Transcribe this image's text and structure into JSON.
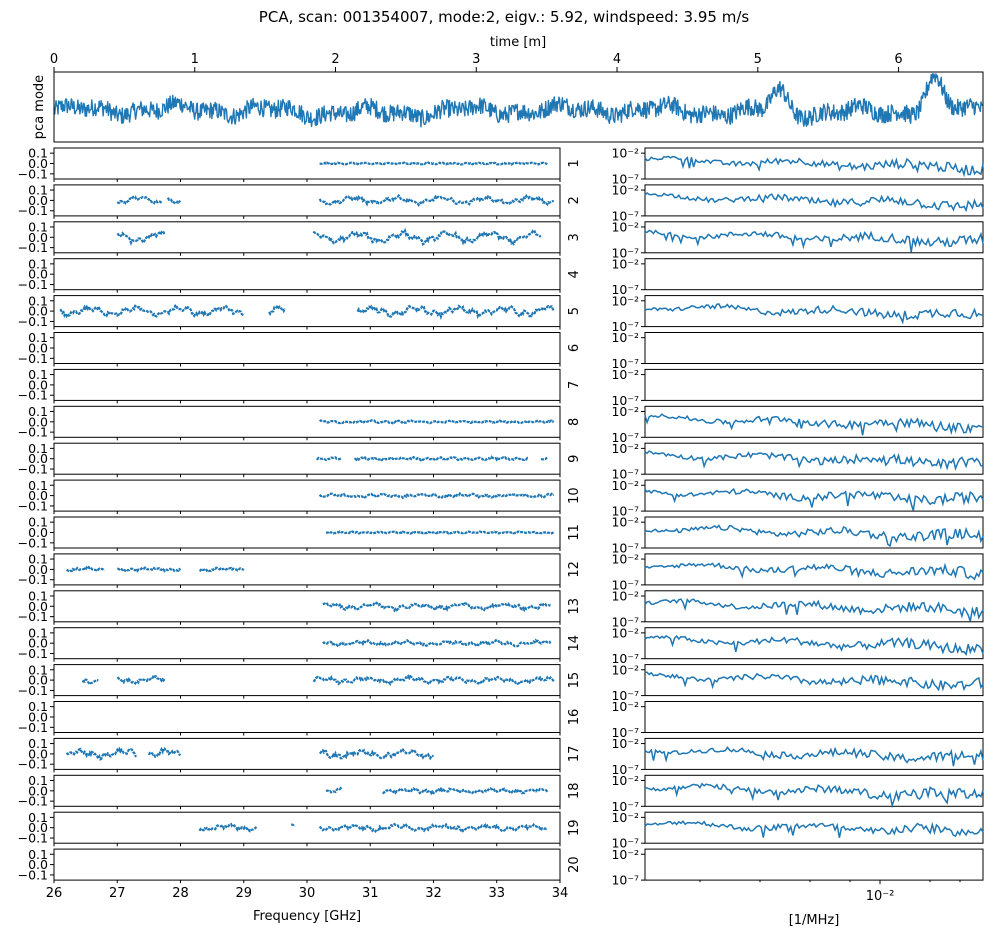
{
  "figure": {
    "title": "PCA, scan: 001354007, mode:2, eigv.: 5.92, windspeed: 3.95 m/s"
  },
  "colors": {
    "series": "#1f77b4",
    "axes": "#000000",
    "background": "#ffffff"
  },
  "chart_data": [
    {
      "type": "line",
      "name": "pca-mode-timeseries",
      "ylabel": "pca mode",
      "xlabel": "time [m]",
      "xlim": [
        0,
        6.6
      ],
      "xticks": [
        0,
        1,
        2,
        3,
        4,
        5,
        6
      ],
      "xtick_labels": [
        "0",
        "1",
        "2",
        "3",
        "4",
        "5",
        "6"
      ],
      "x_axis_position": "top",
      "y_ticks_shown": false,
      "description_values": {
        "baseline_amplitude": 1.0,
        "burst_centers_m": [
          5.15,
          6.25
        ],
        "burst_amplitudes": [
          2.2,
          3.2
        ]
      }
    },
    {
      "type": "scatter",
      "name": "feed-frequency-profiles",
      "xlabel": "Frequency [GHz]",
      "xlim": [
        26,
        34
      ],
      "xticks": [
        26,
        27,
        28,
        29,
        30,
        31,
        32,
        33,
        34
      ],
      "ylim": [
        -0.15,
        0.15
      ],
      "yticks": [
        0.1,
        0.0,
        -0.1
      ],
      "ytick_labels": [
        "0.1",
        "0.0",
        "−0.1"
      ],
      "series": [
        {
          "feed": "1",
          "segments": [
            [
              30.2,
              33.8
            ]
          ],
          "amplitude": 0.012,
          "waviness": 0.1
        },
        {
          "feed": "2",
          "segments": [
            [
              27.0,
              27.7
            ],
            [
              27.8,
              28.0
            ],
            [
              30.2,
              33.9
            ]
          ],
          "amplitude": 0.03,
          "waviness": 0.8
        },
        {
          "feed": "3",
          "segments": [
            [
              27.0,
              27.75
            ],
            [
              30.1,
              33.7
            ]
          ],
          "amplitude": 0.04,
          "waviness": 0.9
        },
        {
          "feed": "4",
          "segments": [],
          "amplitude": 0,
          "waviness": 0
        },
        {
          "feed": "5",
          "segments": [
            [
              26.1,
              29.0
            ],
            [
              29.4,
              29.65
            ],
            [
              30.8,
              33.9
            ]
          ],
          "amplitude": 0.04,
          "waviness": 0.7
        },
        {
          "feed": "6",
          "segments": [],
          "amplitude": 0,
          "waviness": 0
        },
        {
          "feed": "7",
          "segments": [],
          "amplitude": 0,
          "waviness": 0
        },
        {
          "feed": "8",
          "segments": [
            [
              30.2,
              33.9
            ]
          ],
          "amplitude": 0.015,
          "waviness": 0.2
        },
        {
          "feed": "9",
          "segments": [
            [
              30.15,
              30.55
            ],
            [
              30.75,
              33.5
            ],
            [
              33.7,
              33.8
            ]
          ],
          "amplitude": 0.018,
          "waviness": 0.2
        },
        {
          "feed": "10",
          "segments": [
            [
              30.2,
              33.9
            ]
          ],
          "amplitude": 0.02,
          "waviness": 0.4
        },
        {
          "feed": "11",
          "segments": [
            [
              30.3,
              33.9
            ]
          ],
          "amplitude": 0.012,
          "waviness": 0.15
        },
        {
          "feed": "12",
          "segments": [
            [
              26.2,
              26.8
            ],
            [
              27.0,
              28.0
            ],
            [
              28.3,
              29.0
            ]
          ],
          "amplitude": 0.02,
          "waviness": 0.3
        },
        {
          "feed": "13",
          "segments": [
            [
              30.25,
              33.85
            ]
          ],
          "amplitude": 0.03,
          "waviness": 0.6
        },
        {
          "feed": "14",
          "segments": [
            [
              30.25,
              33.85
            ]
          ],
          "amplitude": 0.025,
          "waviness": 0.5
        },
        {
          "feed": "15",
          "segments": [
            [
              26.45,
              26.7
            ],
            [
              27.0,
              27.75
            ],
            [
              30.1,
              33.9
            ]
          ],
          "amplitude": 0.03,
          "waviness": 0.6
        },
        {
          "feed": "16",
          "segments": [],
          "amplitude": 0,
          "waviness": 0
        },
        {
          "feed": "17",
          "segments": [
            [
              26.2,
              27.3
            ],
            [
              27.5,
              28.0
            ],
            [
              30.2,
              32.0
            ]
          ],
          "amplitude": 0.04,
          "waviness": 0.6
        },
        {
          "feed": "18",
          "segments": [
            [
              30.3,
              30.55
            ],
            [
              31.2,
              33.8
            ]
          ],
          "amplitude": 0.025,
          "waviness": 0.4
        },
        {
          "feed": "19",
          "segments": [
            [
              28.3,
              29.2
            ],
            [
              29.75,
              29.8
            ],
            [
              30.2,
              33.8
            ]
          ],
          "amplitude": 0.03,
          "waviness": 0.5
        },
        {
          "feed": "20",
          "segments": [],
          "amplitude": 0,
          "waviness": 0
        }
      ]
    },
    {
      "type": "line",
      "name": "feed-power-spectra",
      "xlabel": "[1/MHz]",
      "xscale": "log",
      "xticks": [
        0.01
      ],
      "xtick_labels": [
        "10⁻²"
      ],
      "yscale": "log",
      "ylim": [
        1e-07,
        0.1
      ],
      "yticks": [
        0.01,
        1e-07
      ],
      "ytick_labels": [
        "10⁻²",
        "10⁻⁷"
      ],
      "series_present": [
        true,
        true,
        true,
        false,
        true,
        false,
        false,
        true,
        true,
        true,
        true,
        true,
        true,
        true,
        true,
        false,
        true,
        true,
        true,
        false
      ]
    }
  ]
}
